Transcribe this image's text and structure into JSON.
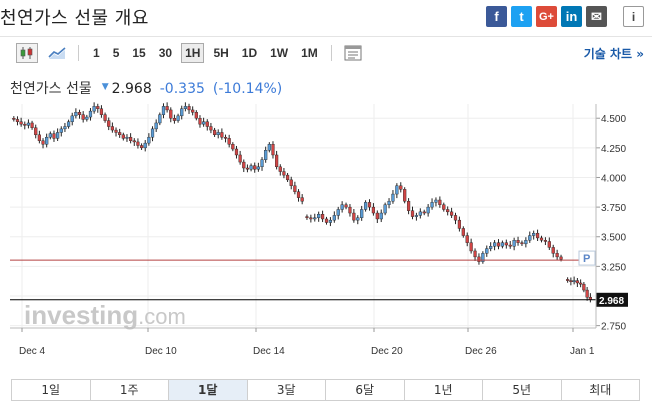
{
  "header": {
    "title": "천연가스 선물 개요",
    "share_buttons": [
      {
        "name": "facebook-icon",
        "glyph": "f",
        "color": "#3b5998"
      },
      {
        "name": "twitter-icon",
        "glyph": "t",
        "color": "#1da1f2"
      },
      {
        "name": "google-plus-icon",
        "glyph": "G+",
        "color": "#dd4b39"
      },
      {
        "name": "linkedin-icon",
        "glyph": "in",
        "color": "#0077b5"
      },
      {
        "name": "email-icon",
        "glyph": "✉",
        "color": "#555555"
      }
    ],
    "info_glyph": "i"
  },
  "toolbar": {
    "icons": [
      "candlestick-icon",
      "line-chart-icon"
    ],
    "timeframes": [
      "1",
      "5",
      "15",
      "30",
      "1H",
      "5H",
      "1D",
      "1W",
      "1M"
    ],
    "active_timeframe": "1H",
    "settings_icon": "indicator-panel-icon",
    "advanced_label": "기술 차트 »"
  },
  "instrument": {
    "name": "천연가스 선물",
    "last": "2.968",
    "change": "-0.335",
    "change_pct": "(-10.14%)"
  },
  "chart_data": {
    "type": "candlestick",
    "x_tick_labels": [
      "Dec 4",
      "Dec 10",
      "Dec 14",
      "Dec 20",
      "Dec 26",
      "Jan 1"
    ],
    "y_tick_labels": [
      "4.500",
      "4.250",
      "4.000",
      "3.750",
      "3.500",
      "3.250",
      "3.000",
      "2.750"
    ],
    "ylim": [
      2.73,
      4.62
    ],
    "grid": true,
    "segments": [
      [
        4.49,
        4.47,
        4.45,
        4.44,
        4.46,
        4.42,
        4.36,
        4.31,
        4.28,
        4.34,
        4.37,
        4.33,
        4.38,
        4.41,
        4.43,
        4.47,
        4.52,
        4.55,
        4.53,
        4.49,
        4.51,
        4.56,
        4.6,
        4.58,
        4.53,
        4.48,
        4.43,
        4.4,
        4.38,
        4.36,
        4.33,
        4.34,
        4.31,
        4.3,
        4.27,
        4.25,
        4.29,
        4.34,
        4.41,
        4.46,
        4.53,
        4.6,
        4.57,
        4.5,
        4.48,
        4.52,
        4.58,
        4.6,
        4.57,
        4.55,
        4.5,
        4.45,
        4.47,
        4.43,
        4.4,
        4.36,
        4.38,
        4.34,
        4.33,
        4.28,
        4.24,
        4.19,
        4.13,
        4.08,
        4.07,
        4.1,
        4.07,
        4.09,
        4.15,
        4.23,
        4.28,
        4.19,
        4.09,
        4.05,
        4.02,
        3.98,
        3.93,
        3.88,
        3.83,
        3.8
      ],
      [
        3.66,
        3.65,
        3.66,
        3.69,
        3.65,
        3.62,
        3.64,
        3.68,
        3.73,
        3.77,
        3.75,
        3.7,
        3.64,
        3.66,
        3.73,
        3.79,
        3.75,
        3.7,
        3.65,
        3.7,
        3.77,
        3.8,
        3.86,
        3.93,
        3.9,
        3.8,
        3.72,
        3.67,
        3.68,
        3.71,
        3.7,
        3.75,
        3.79,
        3.81,
        3.77,
        3.73,
        3.71,
        3.68,
        3.64,
        3.57,
        3.51,
        3.45,
        3.38,
        3.33,
        3.29,
        3.36,
        3.4,
        3.42,
        3.45,
        3.42,
        3.45,
        3.43,
        3.42,
        3.47,
        3.45,
        3.44,
        3.47,
        3.51,
        3.53,
        3.49,
        3.47,
        3.46,
        3.41,
        3.36,
        3.33,
        3.31
      ],
      [
        3.13,
        3.12,
        3.13,
        3.11,
        3.1,
        3.05,
        2.99,
        2.968
      ]
    ],
    "reference_levels": [
      {
        "value": 3.303,
        "color": "#b34040"
      },
      {
        "value": 2.968,
        "color": "#000000"
      }
    ],
    "marker_label": "P",
    "last_label": "2.968",
    "watermark_bold": "investing",
    "watermark_light": ".com"
  },
  "ranges": {
    "items": [
      "1일",
      "1주",
      "1달",
      "3달",
      "6달",
      "1년",
      "5년",
      "최대"
    ],
    "active": "1달"
  }
}
